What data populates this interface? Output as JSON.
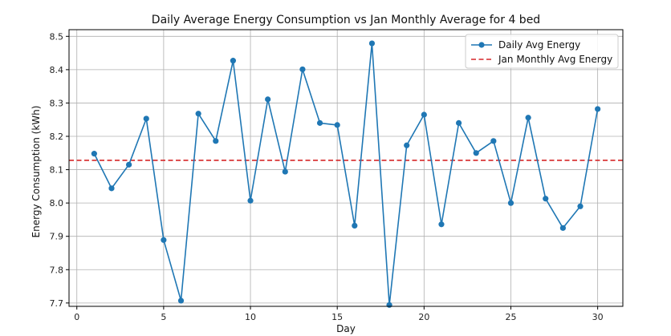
{
  "chart_data": {
    "type": "line",
    "title": "Daily Average Energy Consumption vs Jan Monthly Average for 4 bed",
    "xlabel": "Day",
    "ylabel": "Energy Consumption (kWh)",
    "xlim": [
      -0.45,
      31.45
    ],
    "ylim": [
      7.69,
      8.52
    ],
    "xticks": [
      0,
      5,
      10,
      15,
      20,
      25,
      30
    ],
    "yticks": [
      7.7,
      7.8,
      7.9,
      8.0,
      8.1,
      8.2,
      8.3,
      8.4,
      8.5
    ],
    "ytick_labels": [
      "7.7",
      "7.8",
      "7.9",
      "8.0",
      "8.1",
      "8.2",
      "8.3",
      "8.4",
      "8.5"
    ],
    "grid": true,
    "legend_position": "top-right",
    "series": [
      {
        "name": "Daily Avg Energy",
        "color": "#1f77b4",
        "marker": "circle",
        "x": [
          1,
          2,
          3,
          4,
          5,
          6,
          7,
          8,
          9,
          10,
          11,
          12,
          13,
          14,
          15,
          16,
          17,
          18,
          19,
          20,
          21,
          22,
          23,
          24,
          25,
          26,
          27,
          28,
          29,
          30
        ],
        "y": [
          8.148,
          8.044,
          8.115,
          8.253,
          7.889,
          7.707,
          8.268,
          8.186,
          8.427,
          8.007,
          8.311,
          8.094,
          8.401,
          8.24,
          8.234,
          7.932,
          8.479,
          7.694,
          8.173,
          8.265,
          7.936,
          8.24,
          8.15,
          8.186,
          8.0,
          8.256,
          8.013,
          7.925,
          7.99,
          8.282
        ]
      }
    ],
    "reference_lines": [
      {
        "name": "Jan Monthly Avg Energy",
        "y": 8.128,
        "color": "#d62728",
        "style": "dashed"
      }
    ]
  }
}
